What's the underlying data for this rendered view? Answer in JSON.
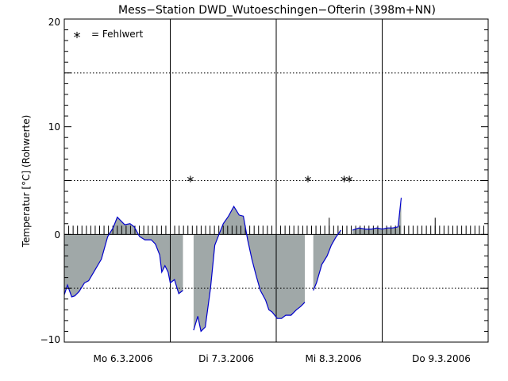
{
  "chart_data": {
    "type": "area",
    "title": "Mess−Station DWD_Wutoeschingen−Ofterin (398m+NN)",
    "ylabel": "Temperatur [°C] (Rohwerte)",
    "xlabel": "",
    "ylim": [
      -10,
      20
    ],
    "xlim": [
      0,
      4
    ],
    "y_ticks": [
      "20",
      "10",
      "0",
      "−10"
    ],
    "y_tick_values": [
      20,
      10,
      0,
      -10
    ],
    "dotted_gridlines": [
      15,
      5,
      -5
    ],
    "day_separators": [
      1,
      2,
      3
    ],
    "x_tick_labels": [
      "Mo 6.3.2006",
      "Di 7.3.2006",
      "Mi 8.3.2006",
      "Do 9.3.2006"
    ],
    "legend": {
      "symbol": "*",
      "label": "= Fehlwert",
      "position": "top-left"
    },
    "missing_markers": [
      {
        "x": 1.19,
        "y": 5.0
      },
      {
        "x": 2.3,
        "y": 5.0
      },
      {
        "x": 2.64,
        "y": 5.0
      },
      {
        "x": 2.69,
        "y": 5.0
      }
    ],
    "colors": {
      "line": "#0000cc",
      "fill": "#a0a8a8",
      "axis": "#000000"
    },
    "segments": [
      [
        [
          0.0,
          -5.6
        ],
        [
          0.03,
          -4.7
        ],
        [
          0.07,
          -5.8
        ],
        [
          0.1,
          -5.7
        ],
        [
          0.14,
          -5.3
        ],
        [
          0.19,
          -4.5
        ],
        [
          0.23,
          -4.3
        ],
        [
          0.29,
          -3.3
        ],
        [
          0.35,
          -2.3
        ],
        [
          0.41,
          -0.2
        ],
        [
          0.46,
          0.6
        ],
        [
          0.5,
          1.6
        ],
        [
          0.53,
          1.3
        ],
        [
          0.57,
          0.9
        ],
        [
          0.62,
          1.0
        ],
        [
          0.66,
          0.7
        ],
        [
          0.71,
          -0.2
        ],
        [
          0.76,
          -0.5
        ],
        [
          0.82,
          -0.5
        ],
        [
          0.86,
          -0.9
        ],
        [
          0.9,
          -1.9
        ],
        [
          0.92,
          -3.5
        ],
        [
          0.95,
          -2.9
        ],
        [
          0.98,
          -3.5
        ],
        [
          1.0,
          -4.5
        ],
        [
          1.04,
          -4.2
        ],
        [
          1.08,
          -5.5
        ],
        [
          1.12,
          -5.2
        ]
      ],
      [
        [
          1.22,
          -8.9
        ],
        [
          1.26,
          -7.6
        ],
        [
          1.29,
          -9.0
        ],
        [
          1.33,
          -8.6
        ],
        [
          1.38,
          -5.0
        ],
        [
          1.42,
          -1.0
        ],
        [
          1.46,
          0.0
        ],
        [
          1.5,
          1.0
        ],
        [
          1.55,
          1.7
        ],
        [
          1.6,
          2.6
        ],
        [
          1.65,
          1.8
        ],
        [
          1.69,
          1.7
        ],
        [
          1.73,
          -0.5
        ],
        [
          1.77,
          -2.3
        ],
        [
          1.81,
          -3.8
        ],
        [
          1.85,
          -5.2
        ],
        [
          1.9,
          -6.1
        ],
        [
          1.93,
          -7.0
        ],
        [
          1.96,
          -7.2
        ],
        [
          2.01,
          -7.8
        ],
        [
          2.05,
          -7.8
        ],
        [
          2.09,
          -7.5
        ],
        [
          2.14,
          -7.5
        ],
        [
          2.19,
          -7.0
        ],
        [
          2.23,
          -6.7
        ],
        [
          2.27,
          -6.3
        ]
      ],
      [
        [
          2.35,
          -5.2
        ],
        [
          2.38,
          -4.5
        ],
        [
          2.43,
          -2.8
        ],
        [
          2.48,
          -2.0
        ],
        [
          2.52,
          -1.0
        ],
        [
          2.56,
          -0.3
        ],
        [
          2.61,
          0.4
        ]
      ],
      [
        [
          2.72,
          0.4
        ],
        [
          2.78,
          0.6
        ],
        [
          2.84,
          0.5
        ],
        [
          2.9,
          0.5
        ],
        [
          2.95,
          0.6
        ],
        [
          3.0,
          0.5
        ],
        [
          3.05,
          0.6
        ],
        [
          3.1,
          0.6
        ],
        [
          3.15,
          0.7
        ],
        [
          3.18,
          3.4
        ]
      ]
    ]
  }
}
